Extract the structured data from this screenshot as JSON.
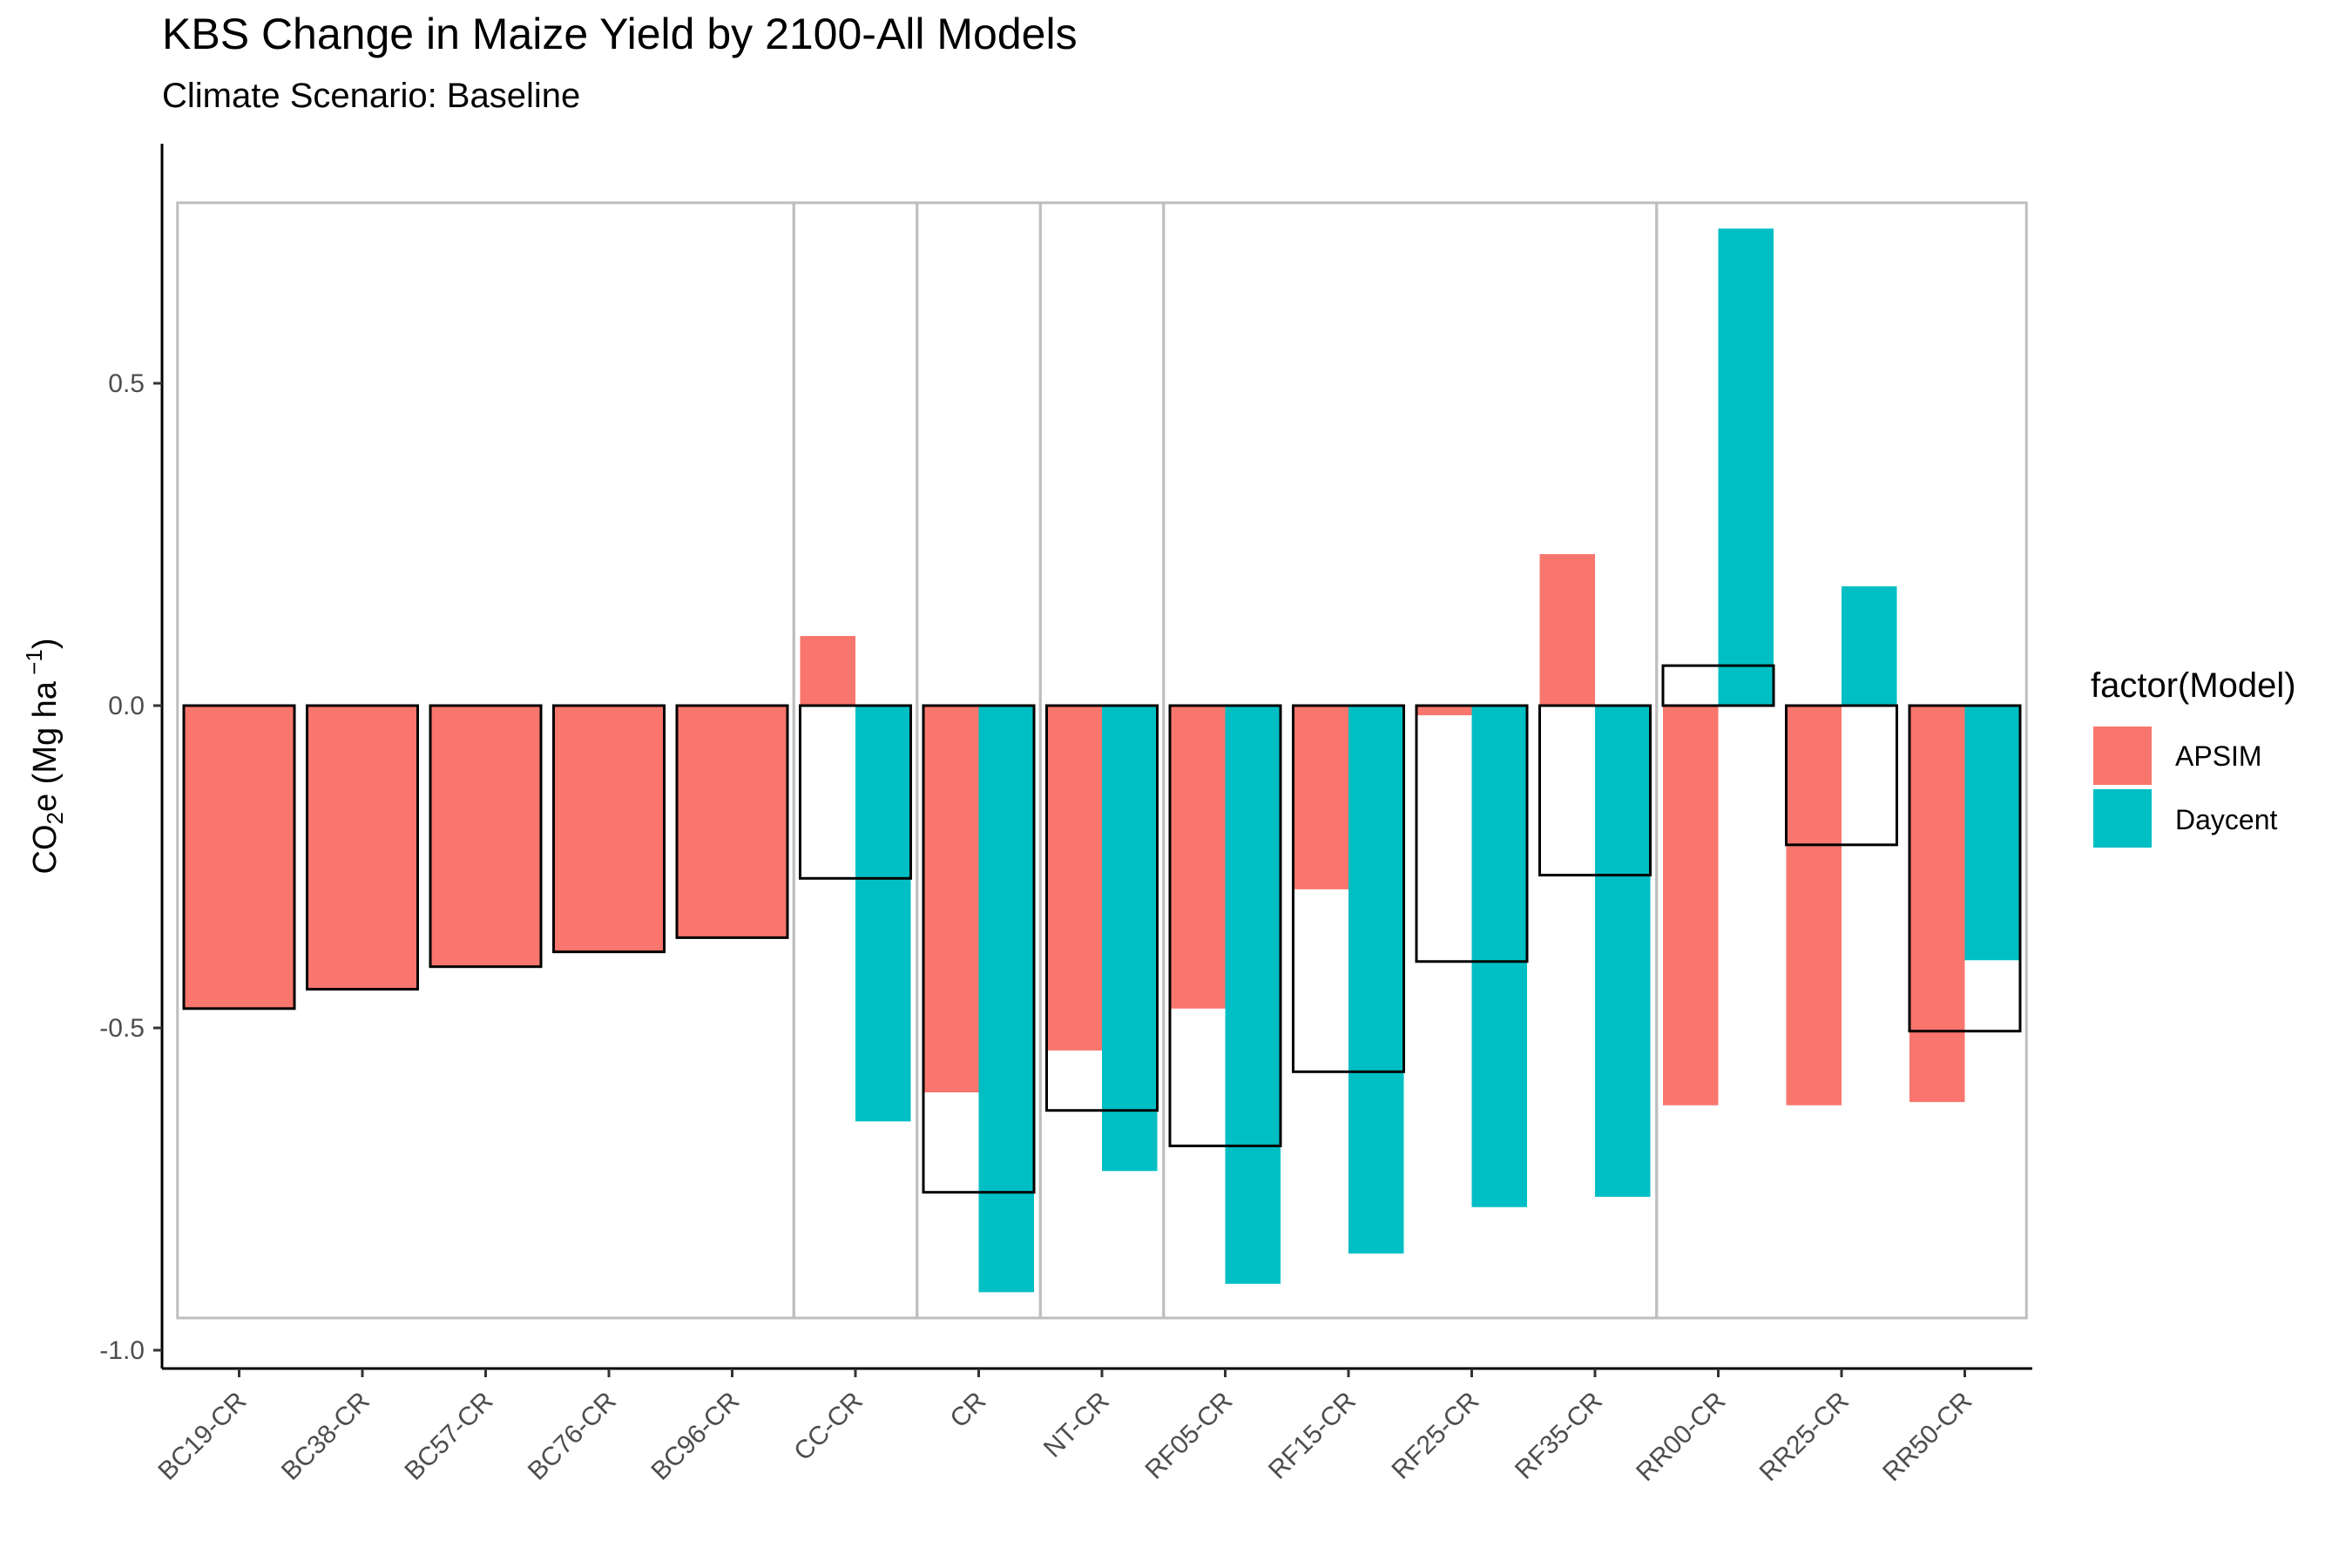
{
  "title": "KBS Change in Maize Yield by 2100-All Models",
  "subtitle": "Climate Scenario: Baseline",
  "chart_data": {
    "type": "bar",
    "ylabel_main": "CO",
    "ylabel_sub": "2",
    "ylabel_rest": "e (Mg ha",
    "ylabel_sup": " −1",
    "ylabel_close": ")",
    "ylim": [
      -1.0,
      0.75
    ],
    "yticks": [
      -1.0,
      -0.5,
      0.0,
      0.5
    ],
    "ytick_labels": [
      "-1.0",
      "-0.5",
      "0.0",
      "0.5"
    ],
    "categories": [
      "BC19-CR",
      "BC38-CR",
      "BC57-CR",
      "BC76-CR",
      "BC96-CR",
      "CC-CR",
      "CR",
      "NT-CR",
      "RF05-CR",
      "RF15-CR",
      "RF25-CR",
      "RF35-CR",
      "RR00-CR",
      "RR25-CR",
      "RR50-CR"
    ],
    "series": [
      {
        "name": "APSIM",
        "color": "#F8766D",
        "values": [
          -0.47,
          -0.44,
          -0.405,
          -0.382,
          -0.36,
          0.108,
          -0.6,
          -0.535,
          -0.47,
          -0.285,
          -0.015,
          0.235,
          -0.62,
          -0.62,
          -0.615
        ]
      },
      {
        "name": "Daycent",
        "color": "#00BFC4",
        "values": [
          null,
          null,
          null,
          null,
          null,
          -0.645,
          -0.91,
          -0.722,
          -0.897,
          -0.85,
          -0.778,
          -0.762,
          0.74,
          0.185,
          -0.395
        ]
      }
    ],
    "outline_values": [
      -0.47,
      -0.44,
      -0.405,
      -0.382,
      -0.36,
      -0.268,
      -0.755,
      -0.628,
      -0.683,
      -0.568,
      -0.397,
      -0.263,
      0.062,
      -0.216,
      -0.505
    ],
    "groups": [
      {
        "start": 0,
        "end": 4
      },
      {
        "start": 5,
        "end": 5
      },
      {
        "start": 6,
        "end": 6
      },
      {
        "start": 7,
        "end": 7
      },
      {
        "start": 8,
        "end": 11
      },
      {
        "start": 12,
        "end": 14
      }
    ],
    "group_box_range": [
      -0.95,
      0.78
    ],
    "legend": {
      "title": "factor(Model)",
      "entries": [
        "APSIM",
        "Daycent"
      ],
      "placement": "right"
    },
    "grid": false
  }
}
